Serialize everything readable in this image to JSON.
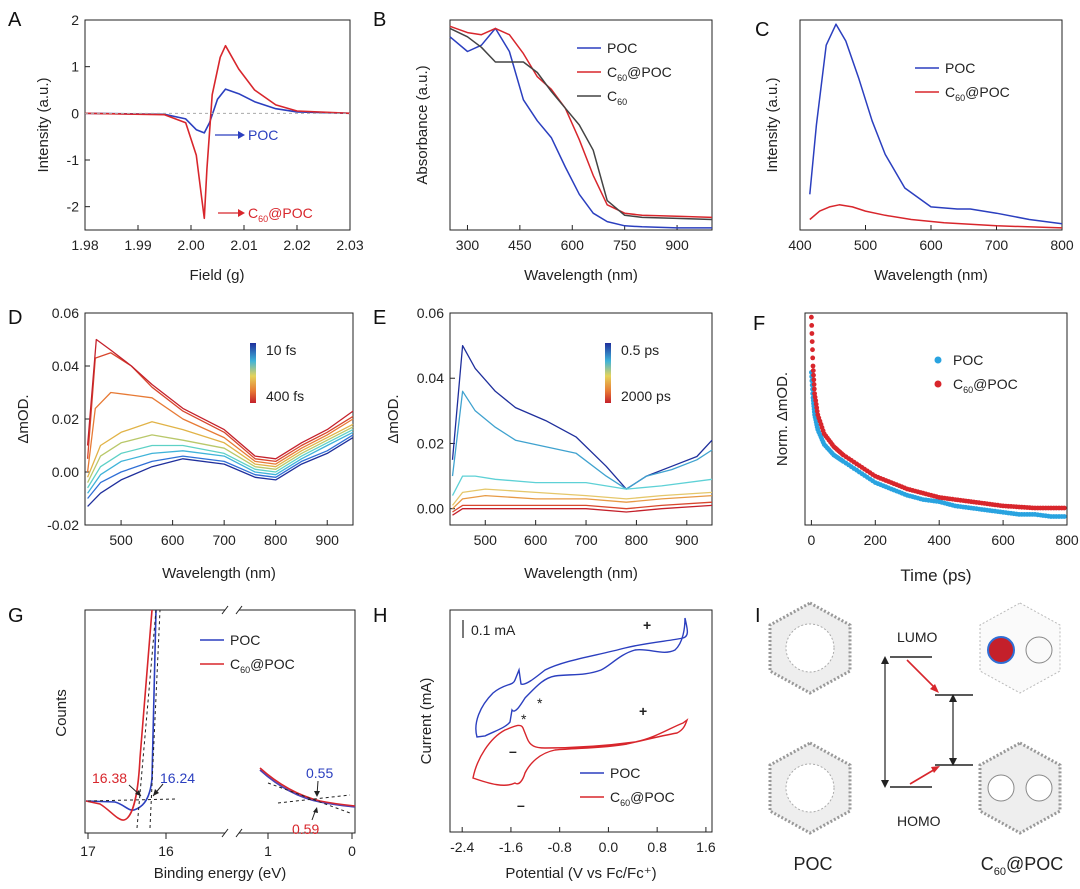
{
  "chart_data": [
    {
      "id": "A",
      "type": "line",
      "panel_label": "A",
      "xlabel": "Field (g)",
      "ylabel": "Intensity (a.u.)",
      "xlim": [
        1.98,
        2.03
      ],
      "ylim": [
        -2.5,
        2
      ],
      "xticks": [
        "1.98",
        "1.99",
        "2.00",
        "2.01",
        "2.02",
        "2.03"
      ],
      "yticks": [
        "2",
        "1",
        "0",
        "-1",
        "-2"
      ],
      "series": [
        {
          "name": "POC",
          "color": "#2b3fbf",
          "x": [
            1.98,
            1.995,
            1.999,
            2.001,
            2.0025,
            2.0035,
            2.005,
            2.0065,
            2.009,
            2.012,
            2.016,
            2.02,
            2.03
          ],
          "y": [
            0,
            -0.02,
            -0.12,
            -0.35,
            -0.42,
            -0.2,
            0.3,
            0.52,
            0.42,
            0.25,
            0.1,
            0.03,
            0
          ]
        },
        {
          "name": "C60@POC",
          "color": "#d8262c",
          "x": [
            1.98,
            1.995,
            1.999,
            2.001,
            2.002,
            2.0025,
            2.003,
            2.004,
            2.0055,
            2.0065,
            2.009,
            2.012,
            2.016,
            2.02,
            2.03
          ],
          "y": [
            0,
            -0.03,
            -0.2,
            -0.9,
            -1.8,
            -2.25,
            -1.2,
            0.4,
            1.2,
            1.45,
            0.95,
            0.5,
            0.18,
            0.05,
            0
          ]
        }
      ],
      "annotations": [
        {
          "text": "POC",
          "color": "#2b3fbf"
        },
        {
          "text": "C60@POC",
          "color": "#d8262c"
        }
      ]
    },
    {
      "id": "B",
      "type": "line",
      "panel_label": "B",
      "xlabel": "Wavelength (nm)",
      "ylabel": "Absorbance (a.u.)",
      "xlim": [
        250,
        1000
      ],
      "ylim": [
        0,
        1
      ],
      "xticks": [
        "300",
        "450",
        "600",
        "750",
        "900"
      ],
      "series": [
        {
          "name": "POC",
          "color": "#2b3fbf",
          "x": [
            250,
            300,
            340,
            380,
            420,
            460,
            500,
            540,
            580,
            620,
            660,
            700,
            750,
            800,
            900,
            1000
          ],
          "y": [
            0.92,
            0.85,
            0.88,
            0.96,
            0.85,
            0.62,
            0.52,
            0.44,
            0.3,
            0.17,
            0.08,
            0.04,
            0.02,
            0.015,
            0.01,
            0.01
          ]
        },
        {
          "name": "C60@POC",
          "color": "#d8262c",
          "x": [
            250,
            300,
            340,
            380,
            420,
            460,
            500,
            540,
            580,
            620,
            660,
            700,
            750,
            800,
            900,
            1000
          ],
          "y": [
            0.97,
            0.94,
            0.93,
            0.96,
            0.93,
            0.84,
            0.73,
            0.67,
            0.58,
            0.43,
            0.26,
            0.12,
            0.08,
            0.07,
            0.065,
            0.06
          ]
        },
        {
          "name": "C60",
          "color": "#444444",
          "x": [
            250,
            300,
            340,
            380,
            420,
            460,
            500,
            540,
            580,
            620,
            660,
            700,
            750,
            800,
            900,
            1000
          ],
          "y": [
            0.96,
            0.92,
            0.87,
            0.8,
            0.8,
            0.8,
            0.75,
            0.66,
            0.58,
            0.5,
            0.38,
            0.14,
            0.07,
            0.06,
            0.055,
            0.05
          ]
        }
      ]
    },
    {
      "id": "C",
      "type": "line",
      "panel_label": "C",
      "xlabel": "Wavelength (nm)",
      "ylabel": "Intensity (a.u.)",
      "xlim": [
        400,
        800
      ],
      "ylim": [
        0,
        1
      ],
      "xticks": [
        "400",
        "500",
        "600",
        "700",
        "800"
      ],
      "series": [
        {
          "name": "POC",
          "color": "#2b3fbf",
          "x": [
            415,
            425,
            440,
            455,
            470,
            490,
            510,
            530,
            560,
            600,
            640,
            660,
            700,
            750,
            800
          ],
          "y": [
            0.17,
            0.5,
            0.88,
            0.98,
            0.9,
            0.72,
            0.52,
            0.36,
            0.2,
            0.11,
            0.1,
            0.1,
            0.08,
            0.05,
            0.03
          ]
        },
        {
          "name": "C60@POC",
          "color": "#d8262c",
          "x": [
            415,
            430,
            445,
            460,
            480,
            500,
            530,
            570,
            620,
            700,
            800
          ],
          "y": [
            0.05,
            0.09,
            0.11,
            0.12,
            0.11,
            0.09,
            0.07,
            0.05,
            0.035,
            0.02,
            0.01
          ]
        }
      ]
    },
    {
      "id": "D",
      "type": "line",
      "panel_label": "D",
      "xlabel": "Wavelength (nm)",
      "ylabel": "ΔmOD.",
      "xlim": [
        430,
        950
      ],
      "ylim": [
        -0.02,
        0.06
      ],
      "xticks": [
        "500",
        "600",
        "700",
        "800",
        "900"
      ],
      "yticks": [
        "0.06",
        "0.04",
        "0.02",
        "0.00",
        "-0.02"
      ],
      "colorbar": {
        "top": "10 fs",
        "bottom": "400 fs"
      },
      "series": [
        {
          "color": "#1f2f9c",
          "x": [
            435,
            460,
            500,
            560,
            620,
            700,
            760,
            800,
            850,
            900,
            950
          ],
          "y": [
            -0.013,
            -0.008,
            -0.003,
            0.002,
            0.005,
            0.003,
            -0.002,
            -0.003,
            0.003,
            0.007,
            0.013
          ]
        },
        {
          "color": "#2f6fd6",
          "x": [
            435,
            460,
            500,
            560,
            620,
            700,
            760,
            800,
            850,
            900,
            950
          ],
          "y": [
            -0.01,
            -0.004,
            0.0,
            0.004,
            0.006,
            0.004,
            -0.001,
            -0.002,
            0.004,
            0.008,
            0.014
          ]
        },
        {
          "color": "#3fb3d9",
          "x": [
            435,
            460,
            500,
            560,
            620,
            700,
            760,
            800,
            850,
            900,
            950
          ],
          "y": [
            -0.008,
            -0.001,
            0.004,
            0.007,
            0.008,
            0.006,
            0.0,
            -0.001,
            0.005,
            0.01,
            0.015
          ]
        },
        {
          "color": "#5ed1c6",
          "x": [
            435,
            460,
            500,
            560,
            620,
            700,
            760,
            800,
            850,
            900,
            950
          ],
          "y": [
            -0.006,
            0.002,
            0.007,
            0.01,
            0.01,
            0.007,
            0.001,
            0.0,
            0.006,
            0.011,
            0.016
          ]
        },
        {
          "color": "#b9c86a",
          "x": [
            435,
            460,
            500,
            560,
            620,
            700,
            760,
            800,
            850,
            900,
            950
          ],
          "y": [
            -0.004,
            0.006,
            0.011,
            0.014,
            0.012,
            0.009,
            0.002,
            0.001,
            0.007,
            0.012,
            0.017
          ]
        },
        {
          "color": "#e1b347",
          "x": [
            435,
            460,
            500,
            560,
            620,
            700,
            760,
            800,
            850,
            900,
            950
          ],
          "y": [
            -0.002,
            0.01,
            0.015,
            0.019,
            0.016,
            0.011,
            0.003,
            0.002,
            0.008,
            0.013,
            0.018
          ]
        },
        {
          "color": "#e77a35",
          "x": [
            435,
            450,
            480,
            520,
            560,
            620,
            700,
            760,
            800,
            850,
            900,
            950
          ],
          "y": [
            0.0,
            0.024,
            0.03,
            0.029,
            0.028,
            0.02,
            0.013,
            0.004,
            0.003,
            0.009,
            0.014,
            0.02
          ]
        },
        {
          "color": "#d8462c",
          "x": [
            435,
            450,
            480,
            520,
            560,
            620,
            700,
            760,
            800,
            850,
            900,
            950
          ],
          "y": [
            0.005,
            0.043,
            0.045,
            0.04,
            0.032,
            0.023,
            0.015,
            0.005,
            0.004,
            0.01,
            0.015,
            0.021
          ]
        },
        {
          "color": "#c4202b",
          "x": [
            435,
            452,
            480,
            520,
            560,
            620,
            700,
            760,
            800,
            850,
            900,
            950
          ],
          "y": [
            0.01,
            0.05,
            0.046,
            0.04,
            0.033,
            0.024,
            0.016,
            0.006,
            0.005,
            0.011,
            0.016,
            0.023
          ]
        }
      ]
    },
    {
      "id": "E",
      "type": "line",
      "panel_label": "E",
      "xlabel": "Wavelength (nm)",
      "ylabel": "ΔmOD.",
      "xlim": [
        430,
        950
      ],
      "ylim": [
        -0.005,
        0.06
      ],
      "xticks": [
        "500",
        "600",
        "700",
        "800",
        "900"
      ],
      "yticks": [
        "0.06",
        "0.04",
        "0.02",
        "0.00"
      ],
      "colorbar": {
        "top": "0.5 ps",
        "bottom": "2000 ps"
      },
      "series": [
        {
          "color": "#1f2f9c",
          "x": [
            435,
            455,
            480,
            520,
            560,
            620,
            680,
            740,
            780,
            820,
            870,
            920,
            950
          ],
          "y": [
            0.015,
            0.05,
            0.043,
            0.036,
            0.031,
            0.027,
            0.022,
            0.013,
            0.006,
            0.01,
            0.013,
            0.016,
            0.021
          ]
        },
        {
          "color": "#3fa2cf",
          "x": [
            435,
            455,
            480,
            520,
            560,
            620,
            680,
            740,
            780,
            820,
            870,
            920,
            950
          ],
          "y": [
            0.01,
            0.036,
            0.03,
            0.025,
            0.021,
            0.019,
            0.017,
            0.01,
            0.006,
            0.01,
            0.012,
            0.015,
            0.018
          ]
        },
        {
          "color": "#5ed1d6",
          "x": [
            435,
            455,
            480,
            520,
            600,
            700,
            780,
            850,
            950
          ],
          "y": [
            0.004,
            0.01,
            0.01,
            0.009,
            0.008,
            0.008,
            0.006,
            0.007,
            0.009
          ]
        },
        {
          "color": "#e5c76a",
          "x": [
            435,
            455,
            500,
            600,
            700,
            780,
            850,
            950
          ],
          "y": [
            0.001,
            0.005,
            0.006,
            0.005,
            0.004,
            0.003,
            0.004,
            0.005
          ]
        },
        {
          "color": "#e79a45",
          "x": [
            435,
            455,
            500,
            600,
            700,
            780,
            850,
            950
          ],
          "y": [
            0.0,
            0.003,
            0.004,
            0.003,
            0.003,
            0.002,
            0.003,
            0.004
          ]
        },
        {
          "color": "#d8462c",
          "x": [
            435,
            455,
            500,
            600,
            700,
            780,
            850,
            950
          ],
          "y": [
            -0.001,
            0.001,
            0.001,
            0.001,
            0.001,
            0.0,
            0.001,
            0.002
          ]
        },
        {
          "color": "#c4202b",
          "x": [
            435,
            455,
            500,
            600,
            700,
            780,
            850,
            950
          ],
          "y": [
            -0.002,
            0.0,
            0.0,
            0.0,
            0.0,
            -0.001,
            0.0,
            0.001
          ]
        }
      ]
    },
    {
      "id": "F",
      "type": "scatter",
      "panel_label": "F",
      "xlabel": "Time (ps)",
      "ylabel": "Norm. ΔmOD.",
      "xlim": [
        -20,
        800
      ],
      "ylim": [
        0,
        1
      ],
      "xticks": [
        "0",
        "200",
        "400",
        "600",
        "800"
      ],
      "series": [
        {
          "name": "POC",
          "color": "#29a3e0",
          "x": [
            0,
            5,
            10,
            20,
            40,
            70,
            100,
            150,
            200,
            250,
            300,
            350,
            400,
            450,
            500,
            550,
            600,
            650,
            700,
            750,
            800
          ],
          "y": [
            0.72,
            0.6,
            0.52,
            0.45,
            0.38,
            0.33,
            0.3,
            0.25,
            0.2,
            0.17,
            0.14,
            0.12,
            0.11,
            0.09,
            0.08,
            0.07,
            0.06,
            0.05,
            0.05,
            0.04,
            0.04
          ]
        },
        {
          "name": "C60@POC",
          "color": "#d8262c",
          "x": [
            0,
            5,
            10,
            20,
            40,
            70,
            100,
            150,
            200,
            250,
            300,
            350,
            400,
            450,
            500,
            550,
            600,
            650,
            700,
            750,
            800
          ],
          "y": [
            0.98,
            0.75,
            0.62,
            0.52,
            0.43,
            0.37,
            0.33,
            0.28,
            0.23,
            0.2,
            0.17,
            0.15,
            0.13,
            0.12,
            0.11,
            0.1,
            0.09,
            0.085,
            0.08,
            0.08,
            0.08
          ]
        }
      ]
    },
    {
      "id": "G",
      "type": "line",
      "panel_label": "G",
      "xlabel": "Binding energy (eV)",
      "ylabel": "Counts",
      "xticks": [
        "17",
        "16",
        "1",
        "0"
      ],
      "series": [
        {
          "name": "POC",
          "color": "#2b3fbf"
        },
        {
          "name": "C60@POC",
          "color": "#d8262c"
        }
      ],
      "annotations": [
        {
          "text": "16.38",
          "color": "#d8262c"
        },
        {
          "text": "16.24",
          "color": "#2b3fbf"
        },
        {
          "text": "0.55",
          "color": "#2b3fbf"
        },
        {
          "text": "0.59",
          "color": "#d8262c"
        }
      ]
    },
    {
      "id": "H",
      "type": "line",
      "panel_label": "H",
      "xlabel": "Potential (V vs Fc/Fc⁺)",
      "ylabel": "Current (mA)",
      "xlim": [
        -2.6,
        1.7
      ],
      "xticks": [
        "-2.4",
        "-1.6",
        "-0.8",
        "0.0",
        "0.8",
        "1.6"
      ],
      "scale_bar": "0.1 mA",
      "series": [
        {
          "name": "POC",
          "color": "#2b3fbf"
        },
        {
          "name": "C60@POC",
          "color": "#d8262c"
        }
      ],
      "marks": [
        "+",
        "*",
        "*",
        "–",
        "+",
        "–"
      ]
    },
    {
      "id": "I",
      "type": "other",
      "panel_label": "I",
      "labels": {
        "lumo": "LUMO",
        "homo": "HOMO",
        "left": "POC",
        "right": "C60@POC"
      }
    }
  ]
}
